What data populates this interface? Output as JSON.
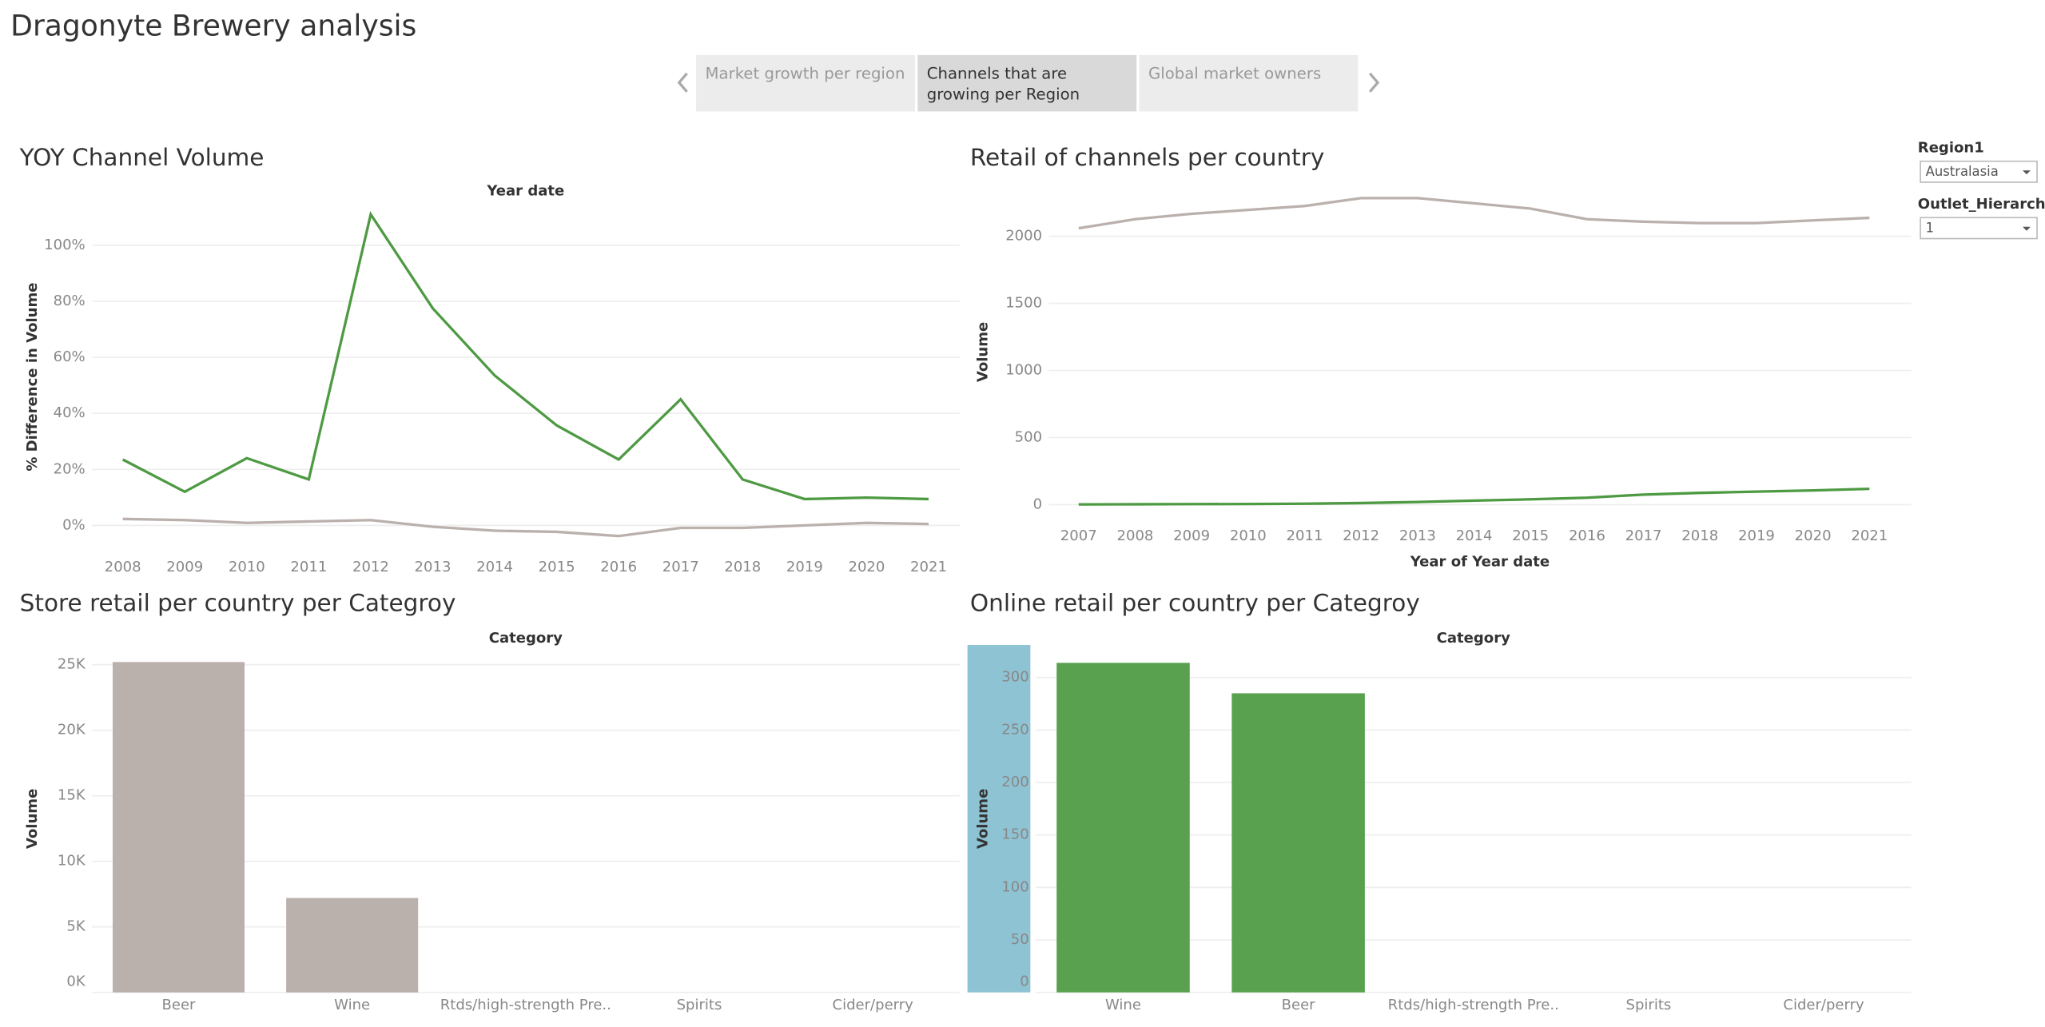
{
  "header": {
    "title": "Dragonyte Brewery analysis"
  },
  "tabs": [
    {
      "label": "Market growth per region"
    },
    {
      "label": "Channels that are growing per Region"
    },
    {
      "label": "Global market owners"
    }
  ],
  "filters": [
    {
      "label": "Region1",
      "value": "Australasia"
    },
    {
      "label": "Outlet_Hierarchy",
      "value": "1"
    }
  ],
  "chart_data": [
    {
      "type": "line",
      "title": "YOY Channel Volume",
      "x_label": "Year date",
      "y_label": "% Difference in Volume",
      "x": [
        2008,
        2009,
        2010,
        2011,
        2012,
        2013,
        2014,
        2015,
        2016,
        2017,
        2018,
        2019,
        2020,
        2021
      ],
      "xlim": [
        2007.5,
        2021.5
      ],
      "xticks": [
        2008,
        2009,
        2010,
        2011,
        2012,
        2013,
        2014,
        2015,
        2016,
        2017,
        2018,
        2019,
        2020,
        2021
      ],
      "ylim": [
        -9,
        115
      ],
      "yticks": [
        {
          "value": 0,
          "label": "0%"
        },
        {
          "value": 20,
          "label": "20%"
        },
        {
          "value": 40,
          "label": "40%"
        },
        {
          "value": 60,
          "label": "60%"
        },
        {
          "value": 80,
          "label": "80%"
        },
        {
          "value": 100,
          "label": "100%"
        }
      ],
      "grid": true,
      "series": [
        {
          "color": "#4e9a43",
          "values": [
            23.5,
            12,
            24,
            16.4,
            111,
            77.5,
            53.5,
            35.7,
            23.5,
            45,
            16.4,
            9.4,
            9.9,
            9.4
          ]
        },
        {
          "color": "#bab0ac",
          "values": [
            2.3,
            1.9,
            0.9,
            1.4,
            1.9,
            -0.5,
            -1.9,
            -2.3,
            -3.8,
            -0.9,
            -0.9,
            0,
            0.9,
            0.5
          ]
        }
      ]
    },
    {
      "type": "line",
      "title": "Retail of channels per country",
      "x_label": "Year of Year date",
      "y_label": "Volume",
      "x": [
        2007,
        2008,
        2009,
        2010,
        2011,
        2012,
        2013,
        2014,
        2015,
        2016,
        2017,
        2018,
        2019,
        2020,
        2021
      ],
      "xlim": [
        2006.47,
        2021.74
      ],
      "xticks": [
        2007,
        2008,
        2009,
        2010,
        2011,
        2012,
        2013,
        2014,
        2015,
        2016,
        2017,
        2018,
        2019,
        2020,
        2021
      ],
      "ylim": [
        -98,
        2373
      ],
      "yticks": [
        0,
        500,
        1000,
        1500,
        2000
      ],
      "grid": true,
      "series": [
        {
          "color": "#bab0ac",
          "values": [
            2059,
            2127,
            2167,
            2196,
            2225,
            2284,
            2284,
            2245,
            2206,
            2127,
            2108,
            2098,
            2098,
            2118,
            2137
          ]
        },
        {
          "color": "#4e9a43",
          "values": [
            2,
            3,
            4,
            5,
            7,
            12,
            20,
            30,
            40,
            52,
            75,
            88,
            97,
            106,
            118
          ]
        }
      ]
    },
    {
      "type": "bar",
      "title": "Store retail per country per Categroy",
      "x_label": "Category",
      "y_label": "Volume",
      "categories": [
        "Beer",
        "Wine",
        "Rtds/high-strength Pre..",
        "Spirits",
        "Cider/perry"
      ],
      "values": [
        25200,
        7200,
        null,
        null,
        null
      ],
      "color": "#bab0ac",
      "ylim": [
        0,
        26500
      ],
      "yticks": [
        {
          "value": 0,
          "label": "0K"
        },
        {
          "value": 5000,
          "label": "5K"
        },
        {
          "value": 10000,
          "label": "10K"
        },
        {
          "value": 15000,
          "label": "15K"
        },
        {
          "value": 20000,
          "label": "20K"
        },
        {
          "value": 25000,
          "label": "25K"
        }
      ],
      "grid": true
    },
    {
      "type": "bar",
      "title": "Online retail per country per Categroy",
      "x_label": "Category",
      "y_label": "Volume",
      "categories": [
        "Wine",
        "Beer",
        "Rtds/high-strength Pre..",
        "Spirits",
        "Cider/perry"
      ],
      "values": [
        314,
        285,
        null,
        null,
        null
      ],
      "color": "#59a14f",
      "ylim": [
        0,
        331
      ],
      "yticks": [
        0,
        50,
        100,
        150,
        200,
        250,
        300
      ],
      "grid": true
    }
  ]
}
